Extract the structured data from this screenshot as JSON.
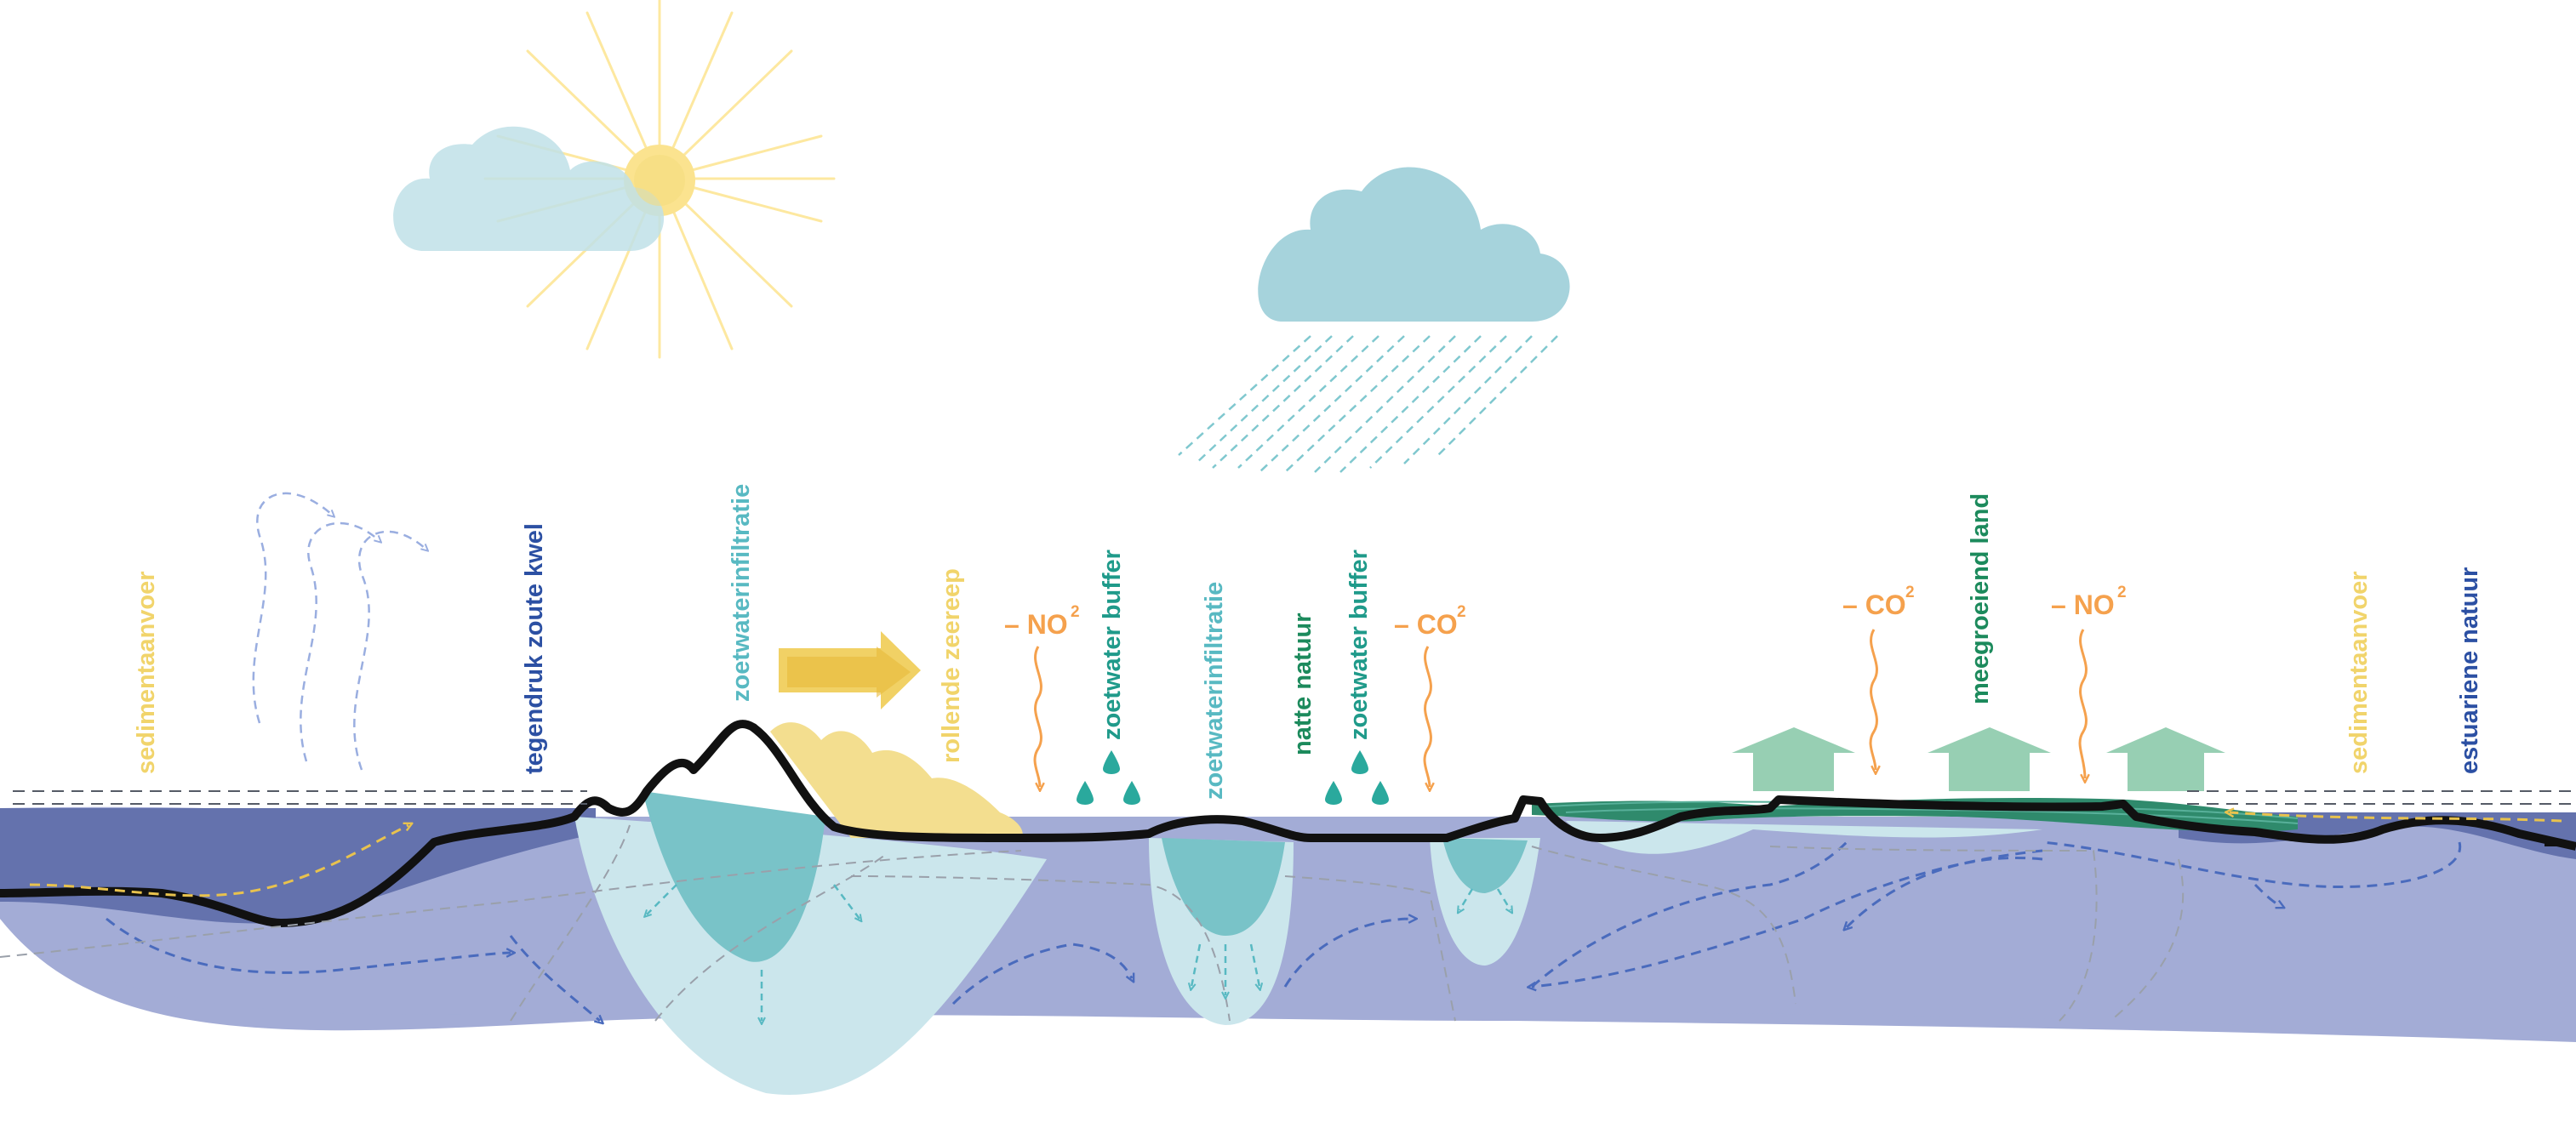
{
  "colors": {
    "deep_water": "#6472ad",
    "subsoil": "#a3acd6",
    "fresh_lens": "#cbe6ec",
    "fresh_core": "#79c3c8",
    "sand": "#f3de8f",
    "sun": "#fde8a0",
    "cloud": "#bfe0e8",
    "rain": "#80c8cf",
    "yellow_label": "#f1d46b",
    "blue_label": "#2c50a3",
    "teal_label": "#58b9c2",
    "green_label": "#1c8a5c",
    "orange_label": "#f5a14d",
    "ground_line": "#111111",
    "arrow_green": "#8ccaab",
    "flow_blue": "#4a6bbd",
    "flow_grey": "#9aa0aa"
  },
  "labels": {
    "sedimentaanvoer_left": "sedimentaanvoer",
    "tegendruk": "tegendruk zoute kwel",
    "zoetwaterinfiltratie_1": "zoetwaterinfiltratie",
    "rollende_zeereep": "rollende zeereep",
    "zoetwater_buffer_1": "zoetwater buffer",
    "zoetwaterinfiltratie_2": "zoetwaterinfiltratie",
    "natte_natuur": "natte natuur",
    "zoetwater_buffer_2": "zoetwater buffer",
    "meegroeiend_land": "meegroeiend land",
    "sedimentaanvoer_right": "sedimentaanvoer",
    "estuariene_natuur": "estuariene natuur"
  },
  "emissions": {
    "no2_left": {
      "prefix": "– NO",
      "sup": "2"
    },
    "co2_left": {
      "prefix": "– CO",
      "sup": "2"
    },
    "co2_right": {
      "prefix": "– CO",
      "sup": "2"
    },
    "no2_right": {
      "prefix": "– NO",
      "sup": "2"
    }
  },
  "icons": [
    "sun-icon",
    "cloud-icon",
    "rain-cloud-icon",
    "rain-icon",
    "wind-arrow-icon",
    "wave-arrow-icon",
    "water-drop-icon",
    "up-arrow-icon",
    "right-arrow-icon"
  ]
}
